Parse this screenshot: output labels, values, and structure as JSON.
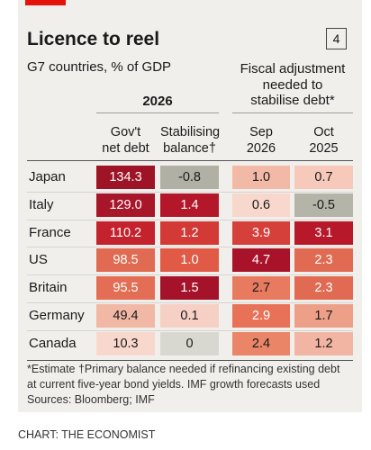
{
  "header": {
    "title": "Licence to reel",
    "badge": "4",
    "subtitle": "G7 countries, % of GDP",
    "group_2026": "2026",
    "group_fiscal": [
      "Fiscal adjustment",
      "needed to",
      "stabilise debt*"
    ]
  },
  "table": {
    "columns": [
      [
        "Gov't",
        "net debt"
      ],
      [
        "Stabilising",
        "balance†"
      ],
      [
        "Sep",
        "2026"
      ],
      [
        "Oct",
        "2025"
      ]
    ],
    "rows": [
      {
        "name": "Japan",
        "cells": [
          "134.3",
          "-0.8",
          "1.0",
          "0.7"
        ],
        "colors": [
          "#9e1326",
          "#b1b0a4",
          "#f3b9a7",
          "#f6c9bb"
        ]
      },
      {
        "name": "Italy",
        "cells": [
          "129.0",
          "1.4",
          "0.6",
          "-0.5"
        ],
        "colors": [
          "#a8162a",
          "#b5172a",
          "#f8d7cc",
          "#b5b4a8"
        ]
      },
      {
        "name": "France",
        "cells": [
          "110.2",
          "1.2",
          "3.9",
          "3.1"
        ],
        "colors": [
          "#c4232e",
          "#d33a36",
          "#d6403a",
          "#b8192a"
        ]
      },
      {
        "name": "US",
        "cells": [
          "98.5",
          "1.0",
          "4.7",
          "2.3"
        ],
        "colors": [
          "#e06a52",
          "#e05a46",
          "#a8132a",
          "#e06a52"
        ]
      },
      {
        "name": "Britain",
        "cells": [
          "95.5",
          "1.5",
          "2.7",
          "2.3"
        ],
        "colors": [
          "#e36e55",
          "#a5132a",
          "#e87a60",
          "#e06a52"
        ]
      },
      {
        "name": "Germany",
        "cells": [
          "49.4",
          "0.1",
          "2.9",
          "1.7"
        ],
        "colors": [
          "#f2b8a6",
          "#f6d0c4",
          "#e77258",
          "#ed9f88"
        ]
      },
      {
        "name": "Canada",
        "cells": [
          "10.3",
          "0",
          "2.4",
          "1.2"
        ],
        "colors": [
          "#f8d8cd",
          "#d9d8d0",
          "#ea8567",
          "#f2b5a3"
        ]
      }
    ]
  },
  "footer": {
    "notes": [
      "*Estimate   †Primary balance needed if refinancing existing debt",
      "at current five-year bond yields. IMF growth forecasts used",
      "Sources: Bloomberg; IMF"
    ],
    "credit": "CHART: THE ECONOMIST"
  }
}
